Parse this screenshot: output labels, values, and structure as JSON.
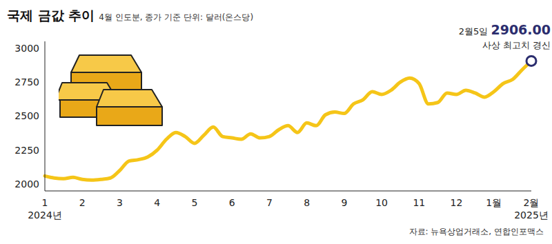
{
  "chart_data": {
    "type": "line",
    "title": "국제 금값 추이",
    "subtitle": "4월 인도분, 종가 기준 단위: 달러(온스당)",
    "source": "자료: 뉴욕상업거래소, 연합인포맥스",
    "categories": [
      "1",
      null,
      null,
      null,
      "2",
      null,
      null,
      null,
      "3",
      null,
      null,
      null,
      "4",
      null,
      null,
      null,
      "5",
      null,
      null,
      null,
      "6",
      null,
      null,
      null,
      "7",
      null,
      null,
      null,
      "8",
      null,
      null,
      null,
      "9",
      null,
      null,
      null,
      "10",
      null,
      null,
      null,
      "11",
      null,
      null,
      null,
      "12",
      null,
      null,
      null,
      "1월",
      null,
      null,
      null,
      "2월"
    ],
    "year_labels": {
      "1": "2024년",
      "2월": "2025년"
    },
    "values": [
      2060,
      2045,
      2040,
      2050,
      2035,
      2030,
      2035,
      2045,
      2100,
      2170,
      2180,
      2200,
      2250,
      2330,
      2380,
      2350,
      2300,
      2360,
      2420,
      2350,
      2340,
      2330,
      2370,
      2340,
      2350,
      2400,
      2430,
      2380,
      2450,
      2430,
      2510,
      2530,
      2520,
      2590,
      2620,
      2680,
      2660,
      2690,
      2750,
      2780,
      2740,
      2590,
      2600,
      2670,
      2660,
      2690,
      2670,
      2640,
      2680,
      2740,
      2770,
      2840,
      2906
    ],
    "color": "#f5c518",
    "ylim": [
      1950,
      3050
    ],
    "yticks": [
      2000,
      2250,
      2500,
      2750,
      3000
    ],
    "grid": false,
    "annotation": {
      "label": "2월5일",
      "value": 2906,
      "value_label": "2906.00",
      "text": "사상 최고치 경신",
      "color": "#2b2d6e"
    }
  }
}
